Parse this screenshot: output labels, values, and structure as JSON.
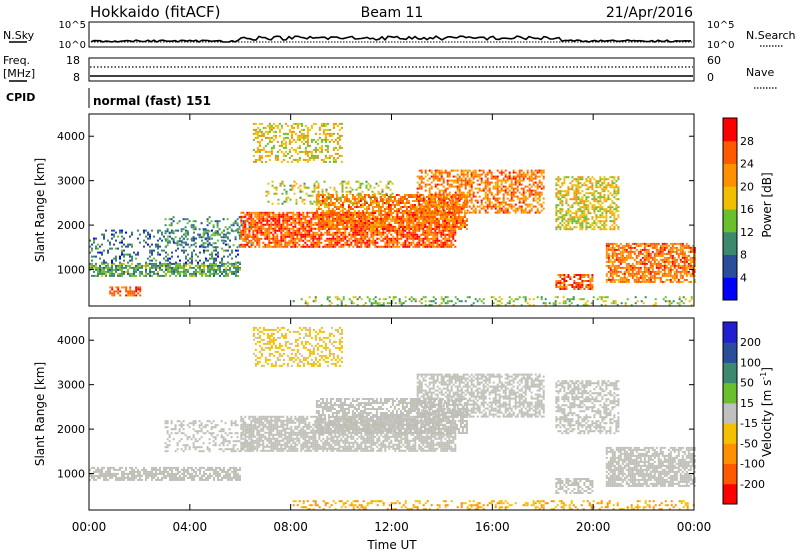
{
  "header": {
    "station": "Hokkaido (fitACF)",
    "beam": "Beam 11",
    "date": "21/Apr/2016"
  },
  "top_panels": {
    "nsky_label": "N.Sky",
    "nsky_ticks": [
      "10^5",
      "10^0"
    ],
    "nsky_right_ticks": [
      "10^5",
      "10^0"
    ],
    "nsearch_label": "N.Search",
    "freq_label_line1": "Freq.",
    "freq_label_line2": "[MHz]",
    "freq_ticks": [
      "18",
      "8"
    ],
    "nave_ticks": [
      "60",
      "0"
    ],
    "nave_label": "Nave",
    "cpid_label": "CPID",
    "cpid_value": "normal (fast) 151"
  },
  "colors": {
    "power_scale": [
      "#0000ff",
      "#2a4e9c",
      "#3c8a6e",
      "#6abf2e",
      "#f0c000",
      "#ff9000",
      "#ff5a00",
      "#ff0000"
    ],
    "velocity_scale": [
      "#ff0000",
      "#ff5a00",
      "#ff9000",
      "#f5c000",
      "#c0c0c0",
      "#6abf2e",
      "#3c8a6e",
      "#2a4e9c",
      "#2020d0"
    ],
    "scatter_gray": "#bfbfb4"
  },
  "chart_data": [
    {
      "type": "heatmap",
      "panel": "power",
      "ylabel": "Slant Range [km]",
      "xlabel": "Time UT",
      "x_ticks": [
        "00:00",
        "04:00",
        "08:00",
        "12:00",
        "16:00",
        "20:00",
        "00:00"
      ],
      "y_ticks": [
        "1000",
        "2000",
        "3000",
        "4000"
      ],
      "xlim_hours": [
        0,
        24
      ],
      "ylim_km": [
        180,
        4500
      ],
      "colorbar_label": "Power [dB]",
      "colorbar_ticks": [
        "28",
        "24",
        "20",
        "16",
        "12",
        "8",
        "4"
      ],
      "colorbar_range": [
        0,
        32
      ],
      "regions": [
        {
          "t0": 0.0,
          "t1": 6.0,
          "r0": 850,
          "r1": 1150,
          "level": 12,
          "density": 0.7
        },
        {
          "t0": 0.0,
          "t1": 6.0,
          "r0": 1150,
          "r1": 1900,
          "level": 8,
          "density": 0.25
        },
        {
          "t0": 0.8,
          "t1": 2.0,
          "r0": 430,
          "r1": 620,
          "level": 26,
          "density": 0.7
        },
        {
          "t0": 3.0,
          "t1": 6.5,
          "r0": 1500,
          "r1": 2200,
          "level": 10,
          "density": 0.25
        },
        {
          "t0": 6.0,
          "t1": 14.5,
          "r0": 1500,
          "r1": 2300,
          "level": 26,
          "density": 0.75
        },
        {
          "t0": 9.0,
          "t1": 15.0,
          "r0": 1900,
          "r1": 2700,
          "level": 24,
          "density": 0.65
        },
        {
          "t0": 13.0,
          "t1": 18.0,
          "r0": 2300,
          "r1": 3250,
          "level": 24,
          "density": 0.55
        },
        {
          "t0": 6.5,
          "t1": 10.0,
          "r0": 3400,
          "r1": 4300,
          "level": 18,
          "density": 0.4
        },
        {
          "t0": 7.0,
          "t1": 12.0,
          "r0": 2500,
          "r1": 3000,
          "level": 16,
          "density": 0.25
        },
        {
          "t0": 18.5,
          "t1": 21.0,
          "r0": 1900,
          "r1": 3100,
          "level": 18,
          "density": 0.55
        },
        {
          "t0": 20.5,
          "t1": 24.0,
          "r0": 700,
          "r1": 1600,
          "level": 24,
          "density": 0.7
        },
        {
          "t0": 18.5,
          "t1": 20.0,
          "r0": 550,
          "r1": 900,
          "level": 26,
          "density": 0.6
        },
        {
          "t0": 8.0,
          "t1": 24.0,
          "r0": 200,
          "r1": 400,
          "level": 14,
          "density": 0.25
        }
      ]
    },
    {
      "type": "heatmap",
      "panel": "velocity",
      "ylabel": "Slant Range [km]",
      "xlabel": "Time UT",
      "x_ticks": [
        "00:00",
        "04:00",
        "08:00",
        "12:00",
        "16:00",
        "20:00",
        "00:00"
      ],
      "y_ticks": [
        "1000",
        "2000",
        "3000",
        "4000"
      ],
      "xlim_hours": [
        0,
        24
      ],
      "ylim_km": [
        180,
        4500
      ],
      "colorbar_label": "Velocity [m s^-1]",
      "colorbar_ticks": [
        "200",
        "100",
        "50",
        "15",
        "-15",
        "-50",
        "-100",
        "-200"
      ],
      "colorbar_range": [
        -250,
        250
      ],
      "regions": [
        {
          "t0": 0.0,
          "t1": 6.0,
          "r0": 850,
          "r1": 1150,
          "level": 0,
          "density": 0.7
        },
        {
          "t0": 3.0,
          "t1": 6.5,
          "r0": 1500,
          "r1": 2200,
          "level": 0,
          "density": 0.3
        },
        {
          "t0": 6.0,
          "t1": 14.5,
          "r0": 1500,
          "r1": 2300,
          "level": 0,
          "density": 0.75
        },
        {
          "t0": 9.0,
          "t1": 15.0,
          "r0": 1900,
          "r1": 2700,
          "level": 0,
          "density": 0.65
        },
        {
          "t0": 13.0,
          "t1": 18.0,
          "r0": 2300,
          "r1": 3250,
          "level": 0,
          "density": 0.6
        },
        {
          "t0": 6.5,
          "t1": 10.0,
          "r0": 3400,
          "r1": 4300,
          "level": -40,
          "density": 0.4
        },
        {
          "t0": 18.5,
          "t1": 21.0,
          "r0": 1900,
          "r1": 3100,
          "level": 0,
          "density": 0.55
        },
        {
          "t0": 20.5,
          "t1": 24.0,
          "r0": 700,
          "r1": 1600,
          "level": 0,
          "density": 0.75
        },
        {
          "t0": 18.5,
          "t1": 20.0,
          "r0": 550,
          "r1": 900,
          "level": 0,
          "density": 0.6
        },
        {
          "t0": 8.0,
          "t1": 24.0,
          "r0": 200,
          "r1": 400,
          "level": -80,
          "density": 0.3
        }
      ]
    }
  ]
}
